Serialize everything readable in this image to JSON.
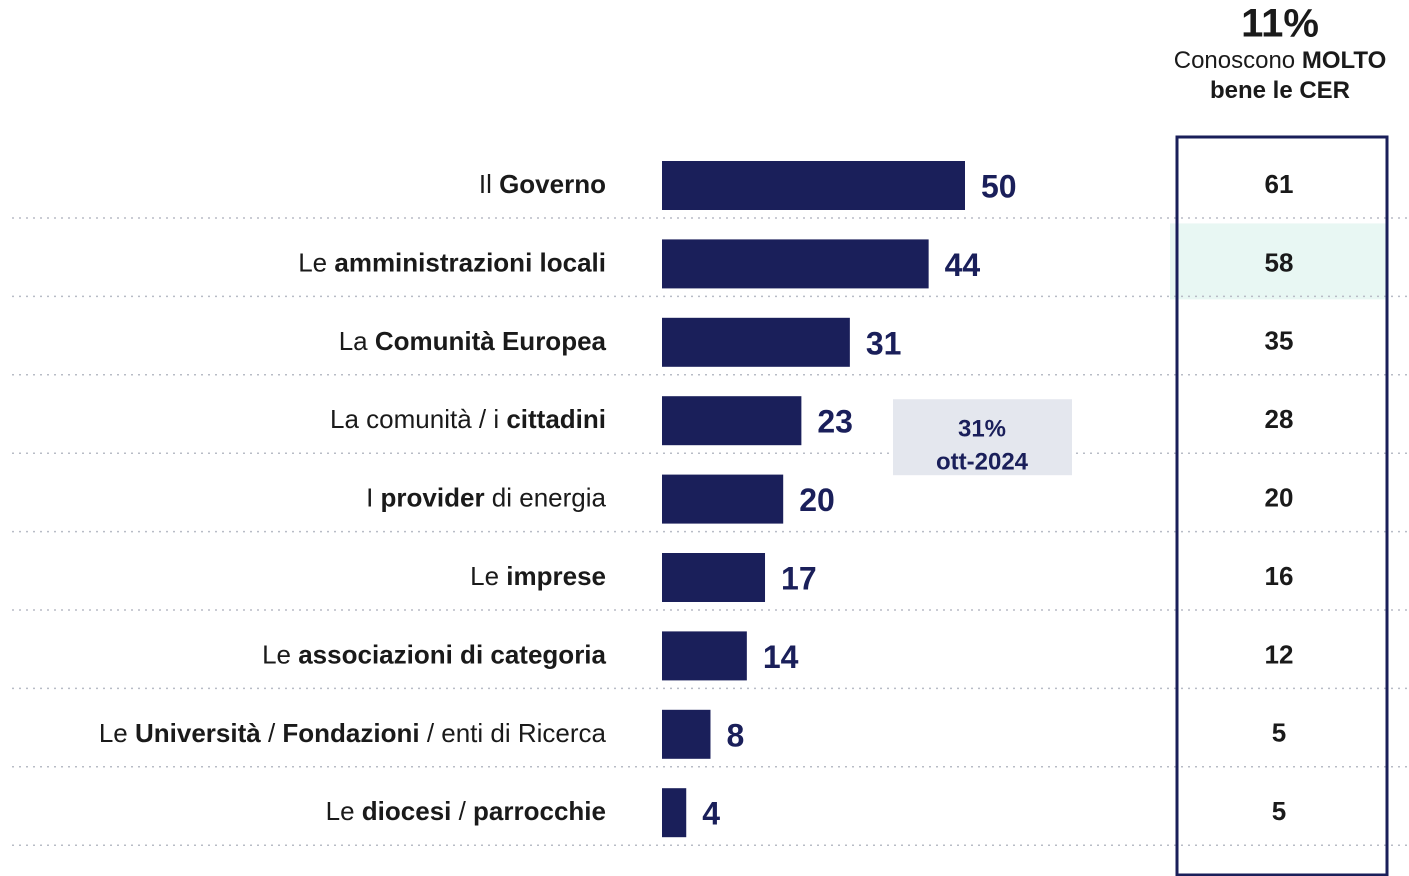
{
  "chart_data": {
    "type": "bar",
    "orientation": "horizontal",
    "categories": [
      [
        {
          "text": "Il "
        },
        {
          "text": "Governo",
          "bold": true
        }
      ],
      [
        {
          "text": "Le "
        },
        {
          "text": "amministrazioni locali",
          "bold": true
        }
      ],
      [
        {
          "text": "La "
        },
        {
          "text": "Comunità Europea",
          "bold": true
        }
      ],
      [
        {
          "text": "La comunità / i "
        },
        {
          "text": "cittadini",
          "bold": true
        }
      ],
      [
        {
          "text": "I "
        },
        {
          "text": "provider",
          "bold": true
        },
        {
          "text": " di energia"
        }
      ],
      [
        {
          "text": "Le "
        },
        {
          "text": "imprese",
          "bold": true
        }
      ],
      [
        {
          "text": "Le "
        },
        {
          "text": "associazioni di categoria",
          "bold": true
        }
      ],
      [
        {
          "text": "Le "
        },
        {
          "text": "Università",
          "bold": true
        },
        {
          "text": " / "
        },
        {
          "text": "Fondazioni",
          "bold": true
        },
        {
          "text": " / enti di Ricerca"
        }
      ],
      [
        {
          "text": "Le "
        },
        {
          "text": "diocesi",
          "bold": true
        },
        {
          "text": " / "
        },
        {
          "text": "parrocchie",
          "bold": true
        }
      ]
    ],
    "values": [
      50,
      44,
      31,
      23,
      20,
      17,
      14,
      8,
      4
    ],
    "color": "#1a1f5a",
    "xlim": [
      0,
      100
    ],
    "annotation": {
      "row": 3,
      "lines": [
        "31%",
        "ott-2024"
      ]
    },
    "side_column": {
      "title": "11%",
      "subtitle": [
        [
          {
            "text": "Conoscono "
          },
          {
            "text": "MOLTO",
            "bold": true
          }
        ],
        [
          {
            "text": "bene le CER",
            "bold": true
          }
        ]
      ],
      "values": [
        61,
        58,
        35,
        28,
        20,
        16,
        12,
        5,
        5
      ],
      "highlight_row": 1,
      "highlight_color": "#e8f7f3"
    }
  }
}
